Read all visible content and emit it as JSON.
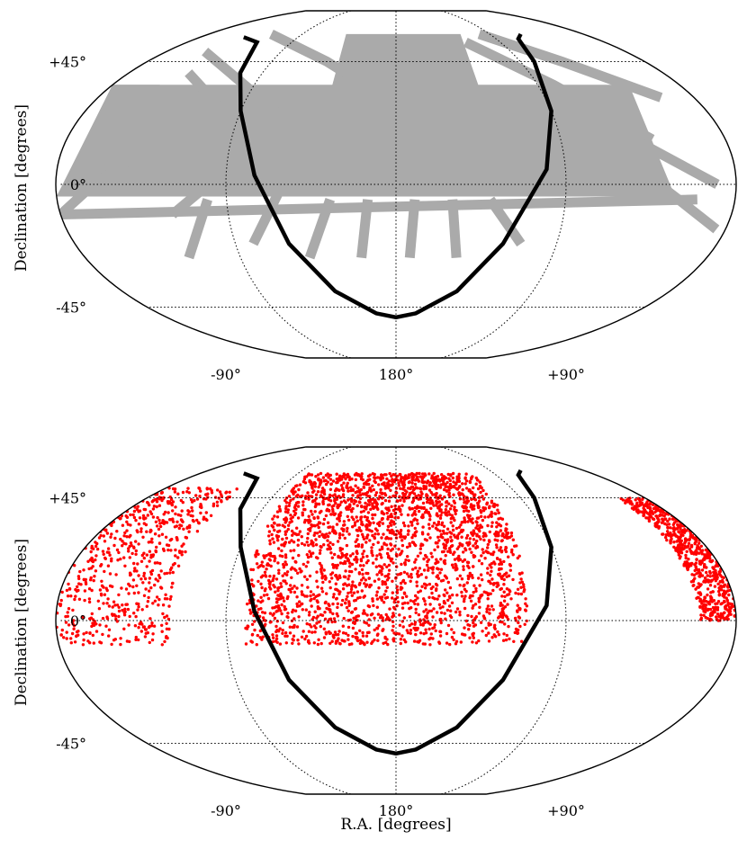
{
  "figure": {
    "xlabel": "R.A. [degrees]",
    "ylabel": "Declination [degrees]"
  },
  "chart_data": [
    {
      "type": "scatter",
      "panel": "top",
      "projection": "sky map (R.A. / Declination)",
      "ylabel": "Declination [degrees]",
      "xlabel": "",
      "x_tick_labels": [
        "+90°",
        "180°",
        "-90°"
      ],
      "x_tick_values": [
        90,
        180,
        -90
      ],
      "y_tick_labels": [
        "+45°",
        "0°",
        "-45°"
      ],
      "y_tick_values": [
        45,
        0,
        -45
      ],
      "grid": true,
      "series": [
        {
          "color": "#aaaaaa",
          "regions": [
            {
              "label": "",
              "ra_range": [
                118,
                228
              ],
              "dec_range": [
                0,
                60
              ]
            },
            {
              "label": "",
              "ra_range": [
                330,
                360
              ],
              "dec_range": [
                -4,
                35
              ]
            },
            {
              "label": "",
              "ra_range": [
                0,
                32
              ],
              "dec_range": [
                -4,
                35
              ]
            }
          ]
        },
        {
          "color": "#000000",
          "curve": [
            {
              "ra": 320,
              "dec": 58
            },
            {
              "ra": 300,
              "dec": 55
            },
            {
              "ra": 285,
              "dec": 40
            },
            {
              "ra": 270,
              "dec": 25
            },
            {
              "ra": 255,
              "dec": 3
            },
            {
              "ra": 240,
              "dec": -20
            },
            {
              "ra": 220,
              "dec": -38
            },
            {
              "ra": 195,
              "dec": -48
            },
            {
              "ra": 180,
              "dec": -50
            },
            {
              "ra": 165,
              "dec": -48
            },
            {
              "ra": 140,
              "dec": -38
            },
            {
              "ra": 120,
              "dec": -20
            },
            {
              "ra": 100,
              "dec": 5
            },
            {
              "ra": 90,
              "dec": 25
            },
            {
              "ra": 80,
              "dec": 45
            },
            {
              "ra": 70,
              "dec": 57
            },
            {
              "ra": 60,
              "dec": 60
            }
          ]
        }
      ]
    },
    {
      "type": "scatter",
      "panel": "bottom",
      "projection": "sky map (R.A. / Declination)",
      "ylabel": "Declination [degrees]",
      "xlabel": "R.A. [degrees]",
      "x_tick_labels": [
        "+90°",
        "180°",
        "-90°"
      ],
      "x_tick_values": [
        90,
        180,
        -90
      ],
      "y_tick_labels": [
        "+45°",
        "0°",
        "-45°"
      ],
      "y_tick_values": [
        45,
        0,
        -45
      ],
      "grid": true,
      "series": [
        {
          "color": "#ff0000",
          "regions": [
            {
              "label": "",
              "ra_range": [
                110,
                260
              ],
              "dec_range": [
                -8,
                58
              ]
            },
            {
              "label": "",
              "ra_range": [
                300,
                360
              ],
              "dec_range": [
                -8,
                50
              ]
            },
            {
              "label": "",
              "ra_range": [
                0,
                20
              ],
              "dec_range": [
                0,
                45
              ]
            }
          ]
        },
        {
          "color": "#000000",
          "curve": [
            {
              "ra": 320,
              "dec": 58
            },
            {
              "ra": 300,
              "dec": 55
            },
            {
              "ra": 285,
              "dec": 40
            },
            {
              "ra": 270,
              "dec": 25
            },
            {
              "ra": 255,
              "dec": 3
            },
            {
              "ra": 240,
              "dec": -20
            },
            {
              "ra": 220,
              "dec": -38
            },
            {
              "ra": 195,
              "dec": -48
            },
            {
              "ra": 180,
              "dec": -50
            },
            {
              "ra": 165,
              "dec": -48
            },
            {
              "ra": 140,
              "dec": -38
            },
            {
              "ra": 120,
              "dec": -20
            },
            {
              "ra": 100,
              "dec": 5
            },
            {
              "ra": 90,
              "dec": 25
            },
            {
              "ra": 80,
              "dec": 45
            },
            {
              "ra": 70,
              "dec": 57
            },
            {
              "ra": 60,
              "dec": 60
            }
          ]
        }
      ]
    }
  ]
}
